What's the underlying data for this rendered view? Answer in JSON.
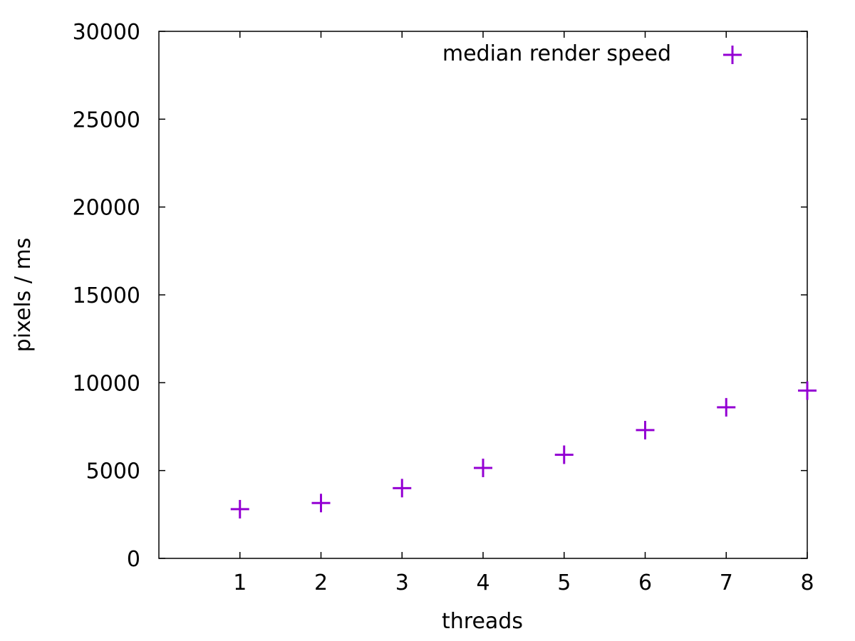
{
  "chart_data": {
    "type": "scatter",
    "title": "",
    "xlabel": "threads",
    "ylabel": "pixels / ms",
    "xlim": [
      0,
      8
    ],
    "ylim": [
      0,
      30000
    ],
    "xticks": [
      1,
      2,
      3,
      4,
      5,
      6,
      7,
      8
    ],
    "yticks": [
      0,
      5000,
      10000,
      15000,
      20000,
      25000,
      30000
    ],
    "grid": false,
    "legend_position": "top-right",
    "series": [
      {
        "name": "median render speed",
        "color": "#9400d3",
        "marker": "plus",
        "x": [
          1,
          2,
          3,
          4,
          5,
          6,
          7,
          8
        ],
        "y": [
          2800,
          3150,
          4000,
          5150,
          5900,
          7300,
          8600,
          9550
        ]
      }
    ]
  }
}
